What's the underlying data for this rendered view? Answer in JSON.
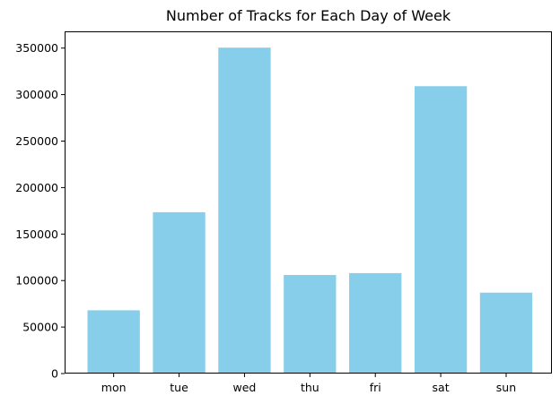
{
  "chart_data": {
    "type": "bar",
    "title": "Number of Tracks for Each Day of Week",
    "xlabel": "",
    "ylabel": "",
    "categories": [
      "mon",
      "tue",
      "wed",
      "thu",
      "fri",
      "sat",
      "sun"
    ],
    "values": [
      68000,
      173500,
      350500,
      106000,
      108000,
      309000,
      87000
    ],
    "ylim": [
      0,
      368000
    ],
    "yticks": [
      0,
      50000,
      100000,
      150000,
      200000,
      250000,
      300000,
      350000
    ],
    "ytick_labels": [
      "0",
      "50000",
      "100000",
      "150000",
      "200000",
      "250000",
      "300000",
      "350000"
    ],
    "grid": false,
    "colors": {
      "bar": "#87ceeb",
      "axis": "#000000",
      "background": "#ffffff"
    }
  }
}
